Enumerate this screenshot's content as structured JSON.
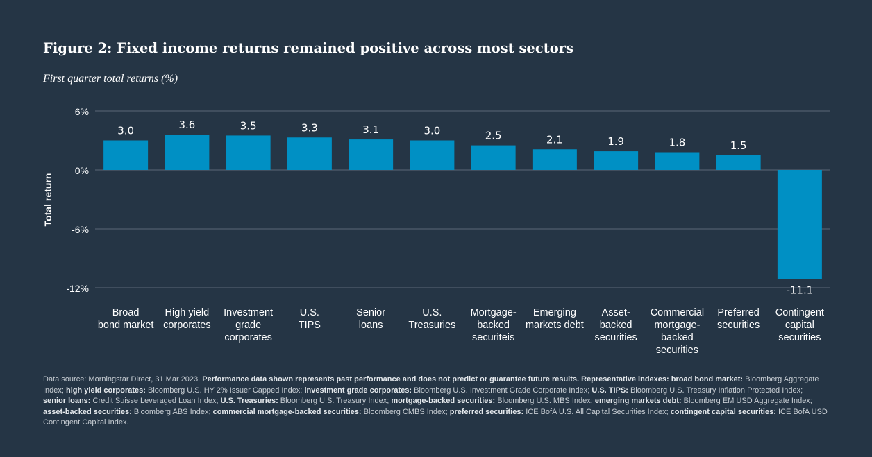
{
  "header": {
    "title": "Figure 2: Fixed income returns remained positive across most sectors",
    "subtitle": "First quarter total returns (%)"
  },
  "colors": {
    "background": "#253545",
    "bar": "#0090c4",
    "grid": "#5b6876",
    "text": "#ffffff"
  },
  "chart_data": {
    "type": "bar",
    "title": "Figure 2: Fixed income returns remained positive across most sectors",
    "subtitle": "First quarter total returns (%)",
    "xlabel": "",
    "ylabel": "Total return",
    "ylim": [
      -12,
      6
    ],
    "yticks": [
      6,
      0,
      -6,
      -12
    ],
    "ytick_labels": [
      "6%",
      "0%",
      "-6%",
      "-12%"
    ],
    "grid": true,
    "categories": [
      "Broad bond market",
      "High yield corporates",
      "Investment grade corporates",
      "U.S. TIPS",
      "Senior loans",
      "U.S. Treasuries",
      "Mortgage-backed securiteis",
      "Emerging markets debt",
      "Asset-backed securities",
      "Commercial mortgage-backed securities",
      "Preferred securities",
      "Contingent capital securities"
    ],
    "category_lines": [
      [
        "Broad",
        "bond market"
      ],
      [
        "High yield",
        "corporates"
      ],
      [
        "Investment",
        "grade",
        "corporates"
      ],
      [
        "U.S.",
        "TIPS"
      ],
      [
        "Senior",
        "loans"
      ],
      [
        "U.S.",
        "Treasuries"
      ],
      [
        "Mortgage-",
        "backed",
        "securiteis"
      ],
      [
        "Emerging",
        "markets debt"
      ],
      [
        "Asset-",
        "backed",
        "securities"
      ],
      [
        "Commercial",
        "mortgage-",
        "backed",
        "securities"
      ],
      [
        "Preferred",
        "securities"
      ],
      [
        "Contingent",
        "capital",
        "securities"
      ]
    ],
    "values": [
      3.0,
      3.6,
      3.5,
      3.3,
      3.1,
      3.0,
      2.5,
      2.1,
      1.9,
      1.8,
      1.5,
      -11.1
    ],
    "value_labels": [
      "3.0",
      "3.6",
      "3.5",
      "3.3",
      "3.1",
      "3.0",
      "2.5",
      "2.1",
      "1.9",
      "1.8",
      "1.5",
      "-11.1"
    ]
  },
  "footnote": {
    "segments": [
      {
        "text": "Data source: Morningstar Direct, 31 Mar 2023. ",
        "bold": false
      },
      {
        "text": "Performance data shown represents past performance and does not predict or guarantee future results. Representative indexes: broad bond market:",
        "bold": true
      },
      {
        "text": " Bloomberg Aggregate Index; ",
        "bold": false
      },
      {
        "text": "high yield corporates:",
        "bold": true
      },
      {
        "text": " Bloomberg U.S. HY 2% Issuer Capped Index; ",
        "bold": false
      },
      {
        "text": "investment grade corporates:",
        "bold": true
      },
      {
        "text": " Bloomberg U.S. Investment Grade Corporate Index; ",
        "bold": false
      },
      {
        "text": "U.S. TIPS:",
        "bold": true
      },
      {
        "text": " Bloomberg U.S. Treasury Inflation Protected Index; ",
        "bold": false
      },
      {
        "text": "senior loans:",
        "bold": true
      },
      {
        "text": " Credit Suisse Leveraged Loan Index; ",
        "bold": false
      },
      {
        "text": "U.S. Treasuries:",
        "bold": true
      },
      {
        "text": " Bloomberg U.S. Treasury Index; ",
        "bold": false
      },
      {
        "text": "mortgage-backed securities:",
        "bold": true
      },
      {
        "text": " Bloomberg U.S. MBS Index; ",
        "bold": false
      },
      {
        "text": "emerging markets debt:",
        "bold": true
      },
      {
        "text": " Bloomberg EM USD Aggregate Index; ",
        "bold": false
      },
      {
        "text": "asset-backed securities:",
        "bold": true
      },
      {
        "text": " Bloomberg ABS Index; ",
        "bold": false
      },
      {
        "text": "commercial mortgage-backed securities:",
        "bold": true
      },
      {
        "text": " Bloomberg CMBS Index; ",
        "bold": false
      },
      {
        "text": "preferred securities:",
        "bold": true
      },
      {
        "text": " ICE BofA U.S. All Capital Securities Index; ",
        "bold": false
      },
      {
        "text": "contingent capital securities:",
        "bold": true
      },
      {
        "text": " ICE BofA USD Contingent Capital Index.",
        "bold": false
      }
    ]
  }
}
